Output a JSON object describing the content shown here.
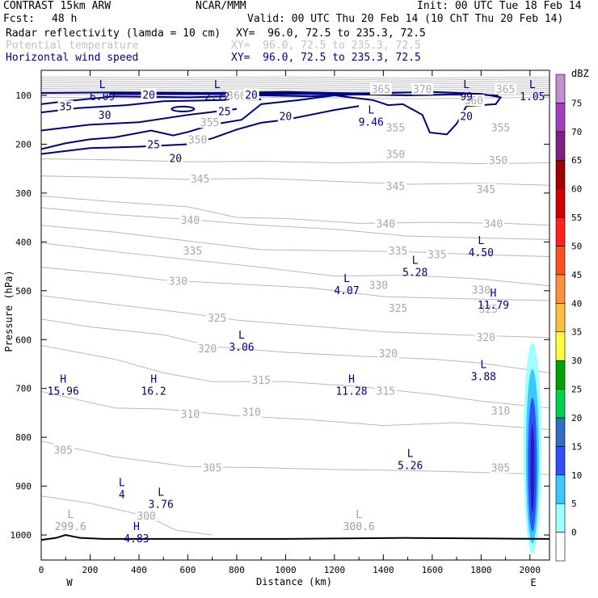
{
  "header": {
    "model": "CONTRAST 15km ARW",
    "center": "NCAR/MMM",
    "init": "Init: 00 UTC Tue 18 Feb 14",
    "fcst_label": "Fcst:",
    "fcst_value": "48 h",
    "valid": "Valid: 00 UTC Thu 20 Feb 14 (10 ChT Thu 20 Feb 14)"
  },
  "fields": [
    {
      "name": "Radar reflectivity (lamda = 10 cm)",
      "xy": "XY=  96.0, 72.5 to 235.3, 72.5",
      "color": "#000000"
    },
    {
      "name": "Potential temperature",
      "xy": "XY=  96.0, 72.5 to 235.3, 72.5",
      "color": "#c0c0c0"
    },
    {
      "name": "Horizontal wind speed",
      "xy": "XY=  96.0, 72.5 to 235.3, 72.5",
      "color": "#00007f"
    }
  ],
  "chart_data": {
    "type": "cross-section",
    "xlabel": "Distance (km)",
    "ylabel": "Pressure (hPa)",
    "xlim": [
      0,
      2080
    ],
    "ylim_pressure": [
      1050,
      50
    ],
    "x_ticks": [
      0,
      200,
      400,
      600,
      800,
      1000,
      1200,
      1400,
      1600,
      1800,
      2000
    ],
    "y_ticks": [
      100,
      200,
      300,
      400,
      500,
      600,
      700,
      800,
      900,
      1000
    ],
    "endpoint_labels": {
      "left": "W",
      "right": "E"
    },
    "colorbar": {
      "unit": "dBZ",
      "levels": [
        0,
        5,
        10,
        15,
        20,
        25,
        30,
        35,
        40,
        45,
        50,
        55,
        60,
        65,
        70,
        75
      ],
      "colors": [
        "#ffffff",
        "#a0ffff",
        "#3cc8ff",
        "#3050ff",
        "#3070c0",
        "#00d050",
        "#00a000",
        "#ffff40",
        "#ffc040",
        "#ff9040",
        "#ff5020",
        "#ff2020",
        "#d00000",
        "#a00000",
        "#802080",
        "#a040c0",
        "#c090d0"
      ]
    },
    "theta_labels": [
      {
        "x": 800,
        "p": 100,
        "text": "360"
      },
      {
        "x": 1770,
        "p": 110,
        "text": "360"
      },
      {
        "x": 1390,
        "p": 87,
        "text": "365"
      },
      {
        "x": 1560,
        "p": 87,
        "text": "370"
      },
      {
        "x": 1900,
        "p": 87,
        "text": "365"
      },
      {
        "x": 690,
        "p": 155,
        "text": "355"
      },
      {
        "x": 1450,
        "p": 165,
        "text": "355"
      },
      {
        "x": 1880,
        "p": 165,
        "text": "355"
      },
      {
        "x": 640,
        "p": 190,
        "text": "350"
      },
      {
        "x": 1450,
        "p": 220,
        "text": "350"
      },
      {
        "x": 1870,
        "p": 232,
        "text": "350"
      },
      {
        "x": 650,
        "p": 270,
        "text": "345"
      },
      {
        "x": 1450,
        "p": 285,
        "text": "345"
      },
      {
        "x": 1820,
        "p": 292,
        "text": "345"
      },
      {
        "x": 610,
        "p": 355,
        "text": "340"
      },
      {
        "x": 1410,
        "p": 362,
        "text": "340"
      },
      {
        "x": 1850,
        "p": 362,
        "text": "340"
      },
      {
        "x": 620,
        "p": 418,
        "text": "335"
      },
      {
        "x": 1460,
        "p": 418,
        "text": "335"
      },
      {
        "x": 1620,
        "p": 425,
        "text": "335"
      },
      {
        "x": 560,
        "p": 480,
        "text": "330"
      },
      {
        "x": 1380,
        "p": 488,
        "text": "330"
      },
      {
        "x": 1800,
        "p": 498,
        "text": "330"
      },
      {
        "x": 720,
        "p": 555,
        "text": "325"
      },
      {
        "x": 1460,
        "p": 535,
        "text": "325"
      },
      {
        "x": 1830,
        "p": 537,
        "text": "325"
      },
      {
        "x": 680,
        "p": 618,
        "text": "320"
      },
      {
        "x": 1420,
        "p": 628,
        "text": "320"
      },
      {
        "x": 1820,
        "p": 595,
        "text": "320"
      },
      {
        "x": 900,
        "p": 682,
        "text": "315"
      },
      {
        "x": 1410,
        "p": 705,
        "text": "315"
      },
      {
        "x": 610,
        "p": 752,
        "text": "310"
      },
      {
        "x": 860,
        "p": 748,
        "text": "310"
      },
      {
        "x": 1880,
        "p": 745,
        "text": "310"
      },
      {
        "x": 90,
        "p": 825,
        "text": "305"
      },
      {
        "x": 700,
        "p": 862,
        "text": "305"
      },
      {
        "x": 1880,
        "p": 862,
        "text": "305"
      },
      {
        "x": 430,
        "p": 960,
        "text": "300"
      }
    ],
    "wind_labels": [
      {
        "x": 440,
        "p": 98,
        "text": "20"
      },
      {
        "x": 860,
        "p": 98,
        "text": "20"
      },
      {
        "x": 100,
        "p": 122,
        "text": "35"
      },
      {
        "x": 260,
        "p": 140,
        "text": "30"
      },
      {
        "x": 750,
        "p": 132,
        "text": "25"
      },
      {
        "x": 1000,
        "p": 142,
        "text": "20"
      },
      {
        "x": 1740,
        "p": 142,
        "text": "20"
      },
      {
        "x": 460,
        "p": 200,
        "text": "25"
      },
      {
        "x": 550,
        "p": 228,
        "text": "20"
      }
    ],
    "extrema": [
      {
        "type": "L",
        "value": "6.09",
        "x": 250,
        "p": 85,
        "color": "#00007f"
      },
      {
        "type": "L",
        "value": "2.72",
        "x": 720,
        "p": 85,
        "color": "#00007f"
      },
      {
        "type": "L",
        "value": "99",
        "x": 1740,
        "p": 85,
        "color": "#00007f"
      },
      {
        "type": "L",
        "value": "1.05",
        "x": 2010,
        "p": 85,
        "color": "#00007f"
      },
      {
        "type": "L",
        "value": "9.46",
        "x": 1350,
        "p": 137,
        "color": "#00007f"
      },
      {
        "type": "L",
        "value": "4.50",
        "x": 1800,
        "p": 404,
        "color": "#00007f"
      },
      {
        "type": "L",
        "value": "5.28",
        "x": 1530,
        "p": 445,
        "color": "#00007f"
      },
      {
        "type": "L",
        "value": "4.07",
        "x": 1250,
        "p": 482,
        "color": "#00007f"
      },
      {
        "type": "H",
        "value": "11.79",
        "x": 1850,
        "p": 512,
        "color": "#00007f"
      },
      {
        "type": "L",
        "value": "3.06",
        "x": 820,
        "p": 598,
        "color": "#00007f"
      },
      {
        "type": "L",
        "value": "3.88",
        "x": 1810,
        "p": 658,
        "color": "#00007f"
      },
      {
        "type": "H",
        "value": "15.96",
        "x": 90,
        "p": 688,
        "color": "#00007f"
      },
      {
        "type": "H",
        "value": "16.2",
        "x": 460,
        "p": 688,
        "color": "#00007f"
      },
      {
        "type": "H",
        "value": "11.28",
        "x": 1270,
        "p": 688,
        "color": "#00007f"
      },
      {
        "type": "L",
        "value": "5.26",
        "x": 1510,
        "p": 840,
        "color": "#00007f"
      },
      {
        "type": "L",
        "value": "4",
        "x": 330,
        "p": 900,
        "color": "#00007f"
      },
      {
        "type": "L",
        "value": "3.76",
        "x": 490,
        "p": 920,
        "color": "#00007f"
      },
      {
        "type": "H",
        "value": "4.83",
        "x": 390,
        "p": 990,
        "color": "#00007f"
      },
      {
        "type": "L",
        "value": "299.6",
        "x": 120,
        "p": 965,
        "color": "#a0a0a0"
      },
      {
        "type": "L",
        "value": "300.6",
        "x": 1300,
        "p": 965,
        "color": "#a0a0a0"
      }
    ],
    "reflectivity_cell": {
      "x_center": 2010,
      "p_bottom": 1005,
      "p_top": 590,
      "max_dbz": 20
    }
  }
}
